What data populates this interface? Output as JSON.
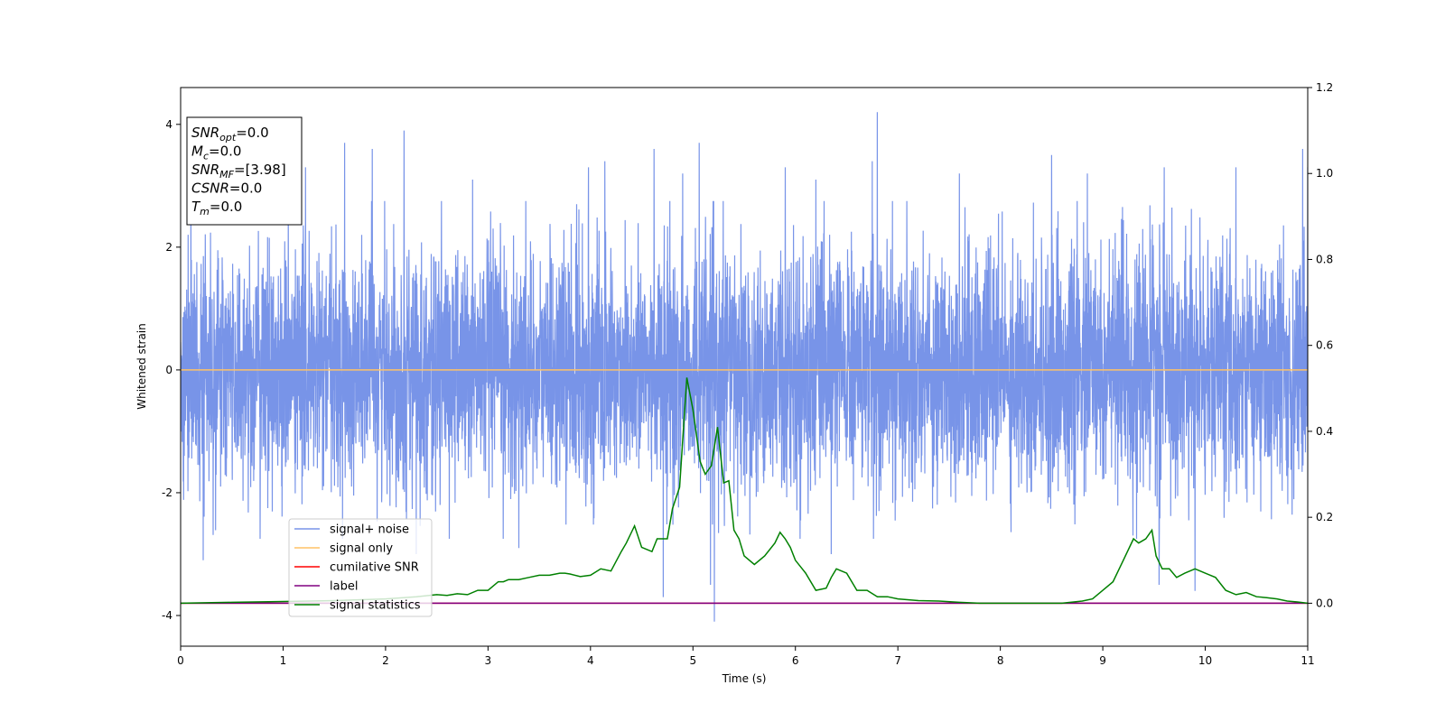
{
  "chart_data": {
    "type": "line",
    "title": "",
    "xlabel": "Time (s)",
    "ylabel": "Whitened strain",
    "xlim": [
      0,
      11
    ],
    "ylim": [
      -4.5,
      4.6
    ],
    "y2lim": [
      -0.1,
      1.2
    ],
    "x_ticks": [
      0,
      1,
      2,
      3,
      4,
      5,
      6,
      7,
      8,
      9,
      10,
      11
    ],
    "y_ticks": [
      -4,
      -2,
      0,
      2,
      4
    ],
    "y2_ticks": [
      "0.0",
      "0.2",
      "0.4",
      "0.6",
      "0.8",
      "1.0",
      "1.2"
    ],
    "grid": false,
    "legend_position": "lower-left",
    "info_box": [
      {
        "main": "SNR",
        "sub": "opt",
        "rest": "=0.0"
      },
      {
        "main": "M",
        "sub": "c",
        "rest": "=0.0"
      },
      {
        "main": "SNR",
        "sub": "MF",
        "rest": "=[3.98]"
      },
      {
        "main": "CSNR",
        "sub": "",
        "rest": "=0.0"
      },
      {
        "main": "T",
        "sub": "m",
        "rest": "=0.0"
      }
    ],
    "series": [
      {
        "name": "signal+ noise",
        "color": "#7894e8",
        "axis": "left",
        "kind": "noise",
        "amplitude_sigma": 0.95,
        "x_range": [
          0,
          11
        ],
        "peaks": [
          [
            0.1,
            2.9
          ],
          [
            0.22,
            -3.1
          ],
          [
            1.22,
            3.3
          ],
          [
            1.6,
            3.7
          ],
          [
            1.87,
            3.6
          ],
          [
            2.18,
            3.9
          ],
          [
            2.3,
            -3.0
          ],
          [
            2.85,
            3.1
          ],
          [
            3.3,
            -2.9
          ],
          [
            3.98,
            3.3
          ],
          [
            4.14,
            3.4
          ],
          [
            4.62,
            3.6
          ],
          [
            4.71,
            -3.7
          ],
          [
            4.9,
            3.2
          ],
          [
            5.06,
            3.7
          ],
          [
            5.21,
            -4.1
          ],
          [
            5.17,
            -3.5
          ],
          [
            5.9,
            3.3
          ],
          [
            6.2,
            3.1
          ],
          [
            6.75,
            3.4
          ],
          [
            6.8,
            4.2
          ],
          [
            6.35,
            -3.0
          ],
          [
            7.6,
            3.2
          ],
          [
            8.5,
            3.5
          ],
          [
            8.85,
            3.2
          ],
          [
            9.55,
            -3.5
          ],
          [
            9.6,
            3.3
          ],
          [
            9.9,
            -3.6
          ],
          [
            10.3,
            3.3
          ],
          [
            10.95,
            3.6
          ],
          [
            11.0,
            3.3
          ]
        ]
      },
      {
        "name": "signal only",
        "color": "#ffc266",
        "axis": "left",
        "kind": "line",
        "x": [
          0,
          11
        ],
        "y": [
          0,
          0
        ]
      },
      {
        "name": "cumilative SNR",
        "color": "#ff0000",
        "axis": "right",
        "kind": "line",
        "x": [
          0,
          11
        ],
        "y": [
          0,
          0
        ]
      },
      {
        "name": "label",
        "color": "#800080",
        "axis": "right",
        "kind": "line",
        "x": [
          0,
          11
        ],
        "y": [
          0,
          0
        ]
      },
      {
        "name": "signal statistics",
        "color": "#008000",
        "axis": "right",
        "kind": "line",
        "x": [
          0,
          0.5,
          1,
          1.5,
          2,
          2.3,
          2.5,
          2.6,
          2.7,
          2.8,
          2.9,
          3.0,
          3.1,
          3.15,
          3.2,
          3.3,
          3.4,
          3.5,
          3.6,
          3.7,
          3.75,
          3.8,
          3.9,
          4.0,
          4.1,
          4.2,
          4.3,
          4.35,
          4.43,
          4.5,
          4.6,
          4.65,
          4.75,
          4.8,
          4.87,
          4.94,
          5.0,
          5.07,
          5.12,
          5.18,
          5.24,
          5.3,
          5.35,
          5.4,
          5.45,
          5.5,
          5.6,
          5.7,
          5.8,
          5.85,
          5.9,
          5.95,
          6.0,
          6.1,
          6.2,
          6.3,
          6.35,
          6.4,
          6.5,
          6.6,
          6.7,
          6.8,
          6.9,
          7.0,
          7.2,
          7.4,
          7.6,
          7.8,
          8.0,
          8.2,
          8.4,
          8.6,
          8.8,
          8.9,
          9.0,
          9.1,
          9.2,
          9.3,
          9.35,
          9.42,
          9.48,
          9.52,
          9.58,
          9.65,
          9.72,
          9.8,
          9.9,
          10.0,
          10.1,
          10.2,
          10.3,
          10.4,
          10.5,
          10.6,
          10.7,
          10.8,
          10.9,
          11.0
        ],
        "y": [
          0.0,
          0.002,
          0.004,
          0.006,
          0.01,
          0.015,
          0.02,
          0.018,
          0.022,
          0.02,
          0.03,
          0.03,
          0.05,
          0.05,
          0.055,
          0.055,
          0.06,
          0.065,
          0.065,
          0.07,
          0.07,
          0.068,
          0.062,
          0.065,
          0.08,
          0.075,
          0.12,
          0.14,
          0.18,
          0.13,
          0.12,
          0.15,
          0.15,
          0.22,
          0.27,
          0.525,
          0.45,
          0.33,
          0.3,
          0.32,
          0.41,
          0.28,
          0.285,
          0.17,
          0.15,
          0.11,
          0.09,
          0.11,
          0.14,
          0.165,
          0.15,
          0.13,
          0.1,
          0.07,
          0.03,
          0.035,
          0.06,
          0.08,
          0.07,
          0.03,
          0.03,
          0.015,
          0.015,
          0.01,
          0.006,
          0.005,
          0.002,
          0.0,
          0.0,
          0.0,
          0.0,
          0.0,
          0.005,
          0.01,
          0.03,
          0.05,
          0.1,
          0.15,
          0.14,
          0.15,
          0.17,
          0.11,
          0.08,
          0.08,
          0.06,
          0.07,
          0.08,
          0.07,
          0.06,
          0.03,
          0.02,
          0.025,
          0.015,
          0.013,
          0.01,
          0.005,
          0.003,
          0.0
        ]
      }
    ]
  }
}
